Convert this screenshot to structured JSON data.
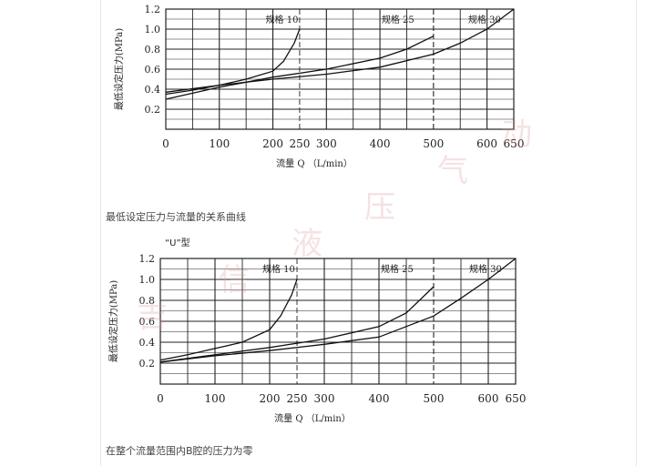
{
  "captions": {
    "top": "最低设定压力与流量的关系曲线",
    "bottom": "在整个流量范围内B腔的压力为零",
    "u_type": "“U”型"
  },
  "watermark": [
    "吉",
    "信",
    "液",
    "压",
    "气",
    "动"
  ],
  "colors": {
    "line": "#111111",
    "grid": "#222222",
    "text": "#222222"
  },
  "chart_data": [
    {
      "type": "line",
      "ylabel": "最低设定压力(MPa)",
      "xlabel": "流量 Q （L/min）",
      "xlim": [
        0,
        650
      ],
      "ylim": [
        0,
        1.2
      ],
      "x_ticks": [
        "0",
        "100",
        "200",
        "250",
        "300",
        "400",
        "500",
        "600",
        "650"
      ],
      "x_tick_values": [
        0,
        100,
        200,
        250,
        300,
        400,
        500,
        600,
        650
      ],
      "y_ticks": [
        "0.2",
        "0.4",
        "0.6",
        "0.8",
        "1.0",
        "1.2"
      ],
      "y_tick_values": [
        0.2,
        0.4,
        0.6,
        0.8,
        1.0,
        1.2
      ],
      "grid": true,
      "series": [
        {
          "name": "规格 10",
          "x": [
            0,
            50,
            100,
            150,
            200,
            220,
            240,
            250
          ],
          "y": [
            0.35,
            0.39,
            0.44,
            0.5,
            0.58,
            0.68,
            0.86,
            1.0
          ],
          "limit": 250
        },
        {
          "name": "规格 25",
          "x": [
            0,
            100,
            200,
            300,
            400,
            450,
            500
          ],
          "y": [
            0.3,
            0.42,
            0.52,
            0.6,
            0.71,
            0.8,
            0.93
          ],
          "limit": 500
        },
        {
          "name": "规格 30",
          "x": [
            0,
            100,
            200,
            300,
            400,
            500,
            550,
            600,
            650
          ],
          "y": [
            0.37,
            0.44,
            0.5,
            0.55,
            0.62,
            0.75,
            0.86,
            1.0,
            1.2
          ],
          "limit": 650
        }
      ]
    },
    {
      "type": "line",
      "ylabel": "最低设定压力(MPa)",
      "xlabel": "流量 Q （L/min）",
      "xlim": [
        0,
        650
      ],
      "ylim": [
        0,
        1.2
      ],
      "x_ticks": [
        "0",
        "100",
        "200",
        "250",
        "300",
        "400",
        "500",
        "600",
        "650"
      ],
      "x_tick_values": [
        0,
        100,
        200,
        250,
        300,
        400,
        500,
        600,
        650
      ],
      "y_ticks": [
        "0.2",
        "0.4",
        "0.6",
        "0.8",
        "1.0",
        "1.2"
      ],
      "y_tick_values": [
        0.2,
        0.4,
        0.6,
        0.8,
        1.0,
        1.2
      ],
      "grid": true,
      "series": [
        {
          "name": "规格 10",
          "x": [
            0,
            50,
            100,
            150,
            200,
            220,
            240,
            250
          ],
          "y": [
            0.23,
            0.28,
            0.34,
            0.4,
            0.52,
            0.65,
            0.85,
            1.0
          ],
          "limit": 250
        },
        {
          "name": "规格 25",
          "x": [
            0,
            100,
            200,
            300,
            400,
            450,
            500
          ],
          "y": [
            0.21,
            0.28,
            0.35,
            0.43,
            0.55,
            0.68,
            0.93
          ],
          "limit": 500
        },
        {
          "name": "规格 30",
          "x": [
            0,
            100,
            200,
            300,
            400,
            500,
            550,
            600,
            650
          ],
          "y": [
            0.21,
            0.27,
            0.32,
            0.38,
            0.45,
            0.65,
            0.82,
            1.0,
            1.2
          ],
          "limit": 650
        }
      ]
    }
  ]
}
